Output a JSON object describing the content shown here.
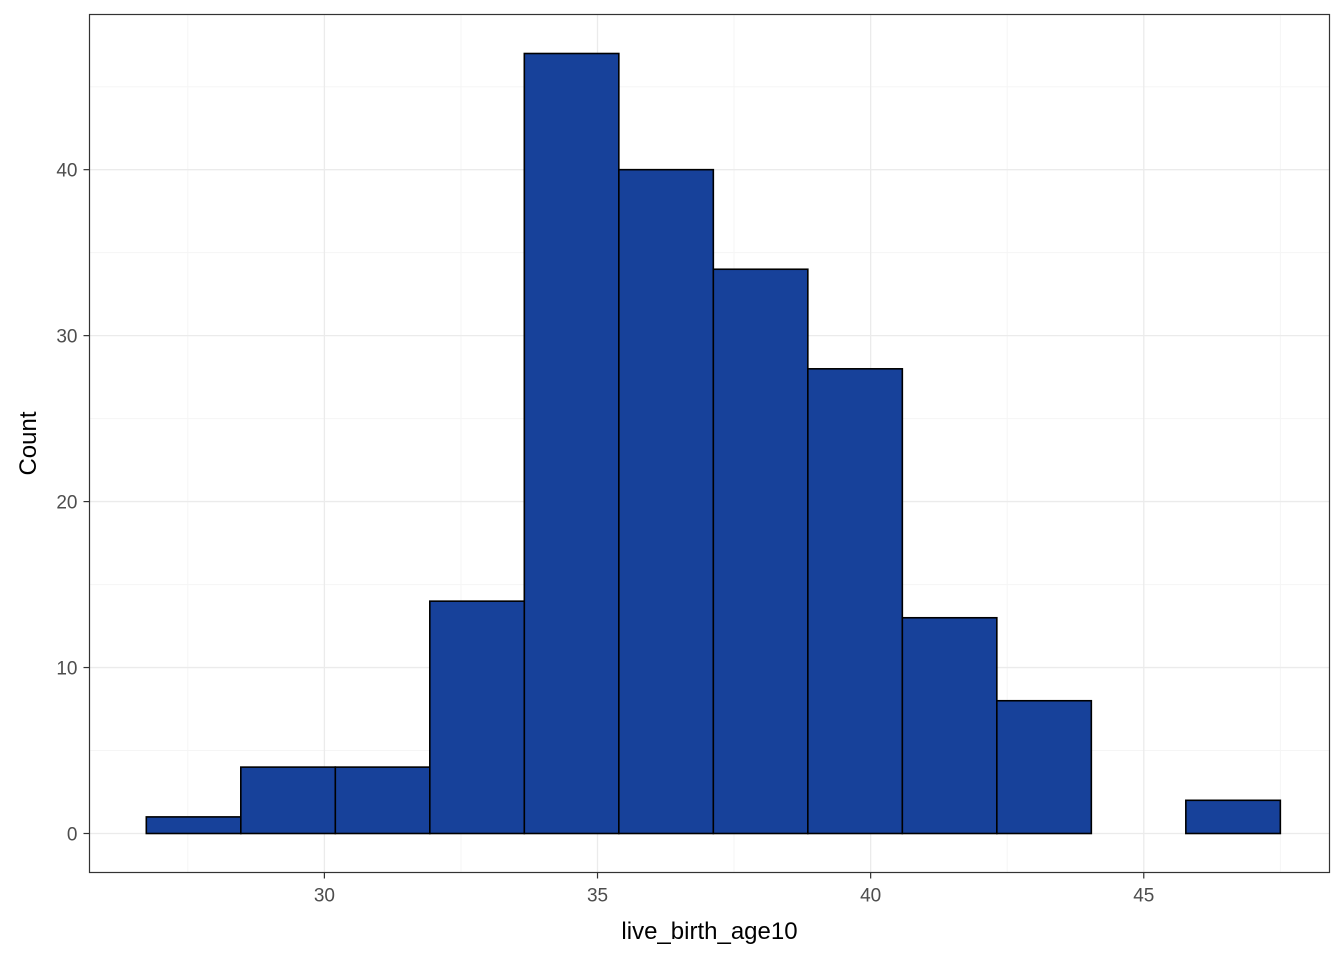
{
  "chart_data": {
    "type": "bar",
    "title": "",
    "xlabel": "live_birth_age10",
    "ylabel": "Count",
    "xlim": [
      25.7,
      48.4
    ],
    "ylim": [
      -2.35,
      49.35
    ],
    "x_ticks": [
      30,
      35,
      40,
      45
    ],
    "y_ticks": [
      0,
      10,
      20,
      30,
      40
    ],
    "x_tick_labels": [
      "30",
      "35",
      "40",
      "45"
    ],
    "y_tick_labels": [
      "0",
      "10",
      "20",
      "30",
      "40"
    ],
    "bin_width": 1.73,
    "bins": [
      {
        "start": 26.74,
        "end": 28.47,
        "count": 1
      },
      {
        "start": 28.47,
        "end": 30.2,
        "count": 4
      },
      {
        "start": 30.2,
        "end": 31.93,
        "count": 4
      },
      {
        "start": 31.93,
        "end": 33.66,
        "count": 14
      },
      {
        "start": 33.66,
        "end": 35.39,
        "count": 47
      },
      {
        "start": 35.39,
        "end": 37.12,
        "count": 40
      },
      {
        "start": 37.12,
        "end": 38.85,
        "count": 34
      },
      {
        "start": 38.85,
        "end": 40.58,
        "count": 28
      },
      {
        "start": 40.58,
        "end": 42.31,
        "count": 13
      },
      {
        "start": 42.31,
        "end": 44.04,
        "count": 8
      },
      {
        "start": 44.04,
        "end": 45.77,
        "count": 0
      },
      {
        "start": 45.77,
        "end": 47.5,
        "count": 2
      }
    ],
    "grid": true,
    "legend": "none",
    "colors": {
      "bar_fill": "#17419A",
      "bar_stroke": "#000000",
      "grid_major": "#EBEBEB",
      "grid_minor": "#F5F5F5",
      "panel_border": "#333333",
      "tick_text": "#4D4D4D",
      "axis_title": "#000000"
    }
  }
}
